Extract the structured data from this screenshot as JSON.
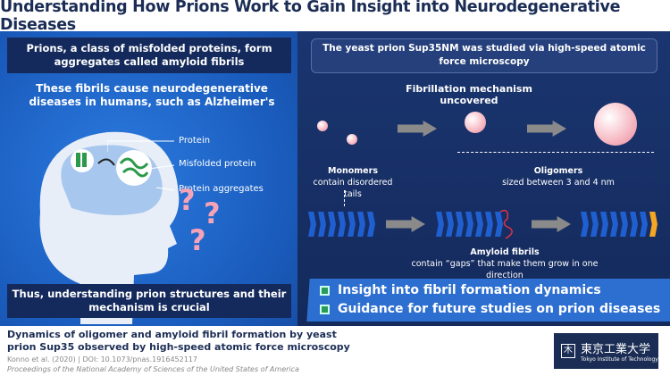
{
  "title": "Understanding How Prions Work to Gain Insight into Neurodegenerative Diseases",
  "left": {
    "banner_top": "Prions, a class of misfolded proteins, form aggregates called amyloid fibrils",
    "subtitle": "These fibrils cause neurodegenerative diseases in humans, such as Alzheimer's",
    "labels": [
      "Protein",
      "Misfolded protein",
      "Protein aggregates"
    ],
    "banner_bottom": "Thus, understanding prion structures and their mechanism is crucial"
  },
  "right": {
    "intro": "The yeast prion Sup35NM was studied via high-speed atomic force microscopy",
    "heading": "Fibrillation mechanism uncovered",
    "monomers": {
      "title": "Monomers",
      "desc": "contain disordered tails"
    },
    "oligomers": {
      "title": "Oligomers",
      "desc": "sized between 3 and 4 nm"
    },
    "fibrils": {
      "title": "Amyloid fibrils",
      "desc": "contain “gaps” that make them grow in one direction"
    },
    "checks": [
      "Insight into fibril formation dynamics",
      "Guidance for future studies on prion diseases"
    ]
  },
  "citation": {
    "title": "Dynamics of oligomer and amyloid fibril formation by yeast prion Sup35 observed by high-speed atomic force microscopy",
    "authors": "Konno et al. (2020) | DOI: 10.1073/pnas.1916452117",
    "journal": "Proceedings of the National Academy of Sciences of the United States of America"
  },
  "logo": {
    "name_jp": "東京工業大学",
    "name_en": "Tokyo Institute of Technology"
  },
  "colors": {
    "navy": "#1b2d55",
    "blue": "#1f5fd0",
    "pink": "#f7a3b7",
    "orange": "#f5a623"
  }
}
